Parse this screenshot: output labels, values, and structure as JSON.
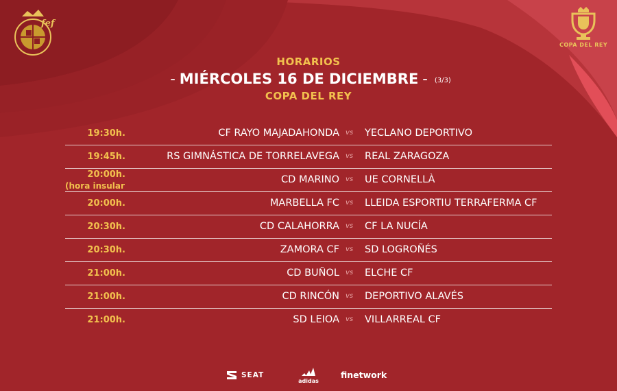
{
  "header": {
    "title": "HORARIOS",
    "date_line": "MIÉRCOLES 16 DE DICIEMBRE",
    "dash": "-",
    "part": "(3/3)",
    "competition": "COPA DEL REY"
  },
  "logos": {
    "fef": "fef-crest-icon",
    "copa": "copa-del-rey-trophy-icon",
    "copa_text": "COPA DEL REY"
  },
  "vs_label": "vs",
  "matches": [
    {
      "time": "19:30h.",
      "time_note": "",
      "home": "CF RAYO MAJADAHONDA",
      "away": "YECLANO DEPORTIVO"
    },
    {
      "time": "19:45h.",
      "time_note": "",
      "home": "RS GIMNÁSTICA DE TORRELAVEGA",
      "away": "REAL ZARAGOZA"
    },
    {
      "time": "20:00h.",
      "time_note": "(hora insular",
      "home": "CD MARINO",
      "away": "UE CORNELLÀ"
    },
    {
      "time": "20:00h.",
      "time_note": "",
      "home": "MARBELLA FC",
      "away": "LLEIDA ESPORTIU TERRAFERMA CF"
    },
    {
      "time": "20:30h.",
      "time_note": "",
      "home": "CD CALAHORRA",
      "away": "CF LA NUCÍA"
    },
    {
      "time": "20:30h.",
      "time_note": "",
      "home": "ZAMORA CF",
      "away": "SD LOGROÑÉS"
    },
    {
      "time": "21:00h.",
      "time_note": "",
      "home": "CD BUÑOL",
      "away": "ELCHE CF"
    },
    {
      "time": "21:00h.",
      "time_note": "",
      "home": "CD RINCÓN",
      "away": "DEPORTIVO ALAVÉS"
    },
    {
      "time": "21:00h.",
      "time_note": "",
      "home": "SD LEIOA",
      "away": "VILLARREAL CF"
    }
  ],
  "sponsors": {
    "seat": "SEAT",
    "adidas": "adidas",
    "finetwork": "finetwork"
  },
  "colors": {
    "background": "#a1252a",
    "accent_gold": "#f2c14e",
    "text": "#ffffff"
  }
}
